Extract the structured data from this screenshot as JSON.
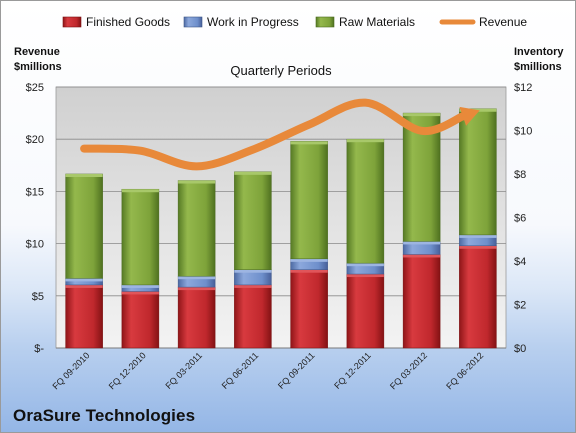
{
  "chart_data": {
    "type": "bar",
    "title": "Quarterly Periods",
    "company": "OraSure Technologies",
    "left_axis": {
      "label_line1": "Revenue",
      "label_line2": "$millions",
      "range": [
        0,
        25
      ],
      "ticks": [
        {
          "value": 0,
          "label": "$-"
        },
        {
          "value": 5,
          "label": "$5"
        },
        {
          "value": 10,
          "label": "$10"
        },
        {
          "value": 15,
          "label": "$15"
        },
        {
          "value": 20,
          "label": "$20"
        },
        {
          "value": 25,
          "label": "$25"
        }
      ]
    },
    "right_axis": {
      "label_line1": "Inventory",
      "label_line2": "$millions",
      "range": [
        0,
        12
      ],
      "ticks": [
        {
          "value": 0,
          "label": "$0"
        },
        {
          "value": 2,
          "label": "$2"
        },
        {
          "value": 4,
          "label": "$4"
        },
        {
          "value": 6,
          "label": "$6"
        },
        {
          "value": 8,
          "label": "$8"
        },
        {
          "value": 10,
          "label": "$10"
        },
        {
          "value": 12,
          "label": "$12"
        }
      ]
    },
    "categories": [
      "FQ 09-2010",
      "FQ 12-2010",
      "FQ 03-2011",
      "FQ 06-2011",
      "FQ 09-2011",
      "FQ 12-2011",
      "FQ 03-2012",
      "FQ 06-2012"
    ],
    "series": [
      {
        "name": "Finished Goods",
        "axis": "right",
        "values": [
          2.9,
          2.6,
          2.8,
          2.9,
          3.6,
          3.4,
          4.3,
          4.7
        ]
      },
      {
        "name": "Work in Progress",
        "axis": "right",
        "values": [
          0.3,
          0.3,
          0.5,
          0.7,
          0.5,
          0.5,
          0.6,
          0.5
        ]
      },
      {
        "name": "Raw Materials",
        "axis": "right",
        "values": [
          4.8,
          4.4,
          4.4,
          4.5,
          5.4,
          5.7,
          5.9,
          5.8
        ]
      },
      {
        "name": "Revenue",
        "axis": "left",
        "type": "line",
        "values": [
          19.1,
          18.9,
          17.4,
          19.0,
          21.4,
          23.5,
          20.8,
          22.7
        ]
      }
    ],
    "colors": {
      "Finished Goods": "#c0282d",
      "Work in Progress": "#6e8fcb",
      "Raw Materials": "#7ea33a",
      "Revenue": "#e8893a"
    },
    "grid": true,
    "legend_position": "top"
  }
}
